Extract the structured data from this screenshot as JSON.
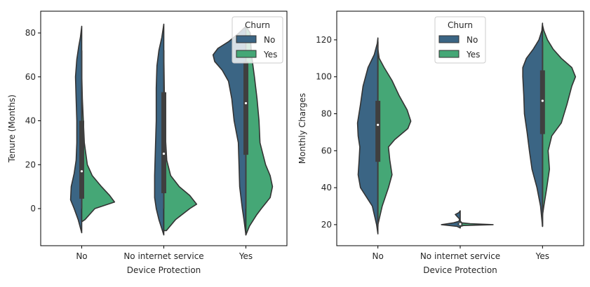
{
  "chart_data": [
    {
      "type": "violin",
      "split": true,
      "xlabel": "Device Protection",
      "ylabel": "Tenure (Months)",
      "categories": [
        "No",
        "No internet service",
        "Yes"
      ],
      "ylim": [
        -16.9,
        89.9
      ],
      "yticks": [
        0,
        20,
        40,
        60,
        80
      ],
      "grid": false,
      "legend": {
        "title": "Churn",
        "placement": "top-right",
        "entries": [
          "No",
          "Yes"
        ]
      },
      "series": [
        {
          "name": "No",
          "color": "#3b6584",
          "profiles": [
            [
              [
                -11,
                0
              ],
              [
                -5,
                0.11
              ],
              [
                0,
                0.23
              ],
              [
                4,
                0.34
              ],
              [
                10,
                0.32
              ],
              [
                16,
                0.23
              ],
              [
                22,
                0.17
              ],
              [
                30,
                0.15
              ],
              [
                40,
                0.15
              ],
              [
                50,
                0.17
              ],
              [
                60,
                0.19
              ],
              [
                68,
                0.15
              ],
              [
                74,
                0.09
              ],
              [
                78,
                0.04
              ],
              [
                83,
                0
              ]
            ],
            [
              [
                -12,
                0
              ],
              [
                -5,
                0.15
              ],
              [
                0,
                0.23
              ],
              [
                5,
                0.28
              ],
              [
                15,
                0.28
              ],
              [
                25,
                0.26
              ],
              [
                40,
                0.23
              ],
              [
                55,
                0.23
              ],
              [
                65,
                0.21
              ],
              [
                72,
                0.15
              ],
              [
                78,
                0.06
              ],
              [
                84,
                0
              ]
            ],
            [
              [
                -12,
                0
              ],
              [
                -5,
                0.06
              ],
              [
                0,
                0.11
              ],
              [
                10,
                0.19
              ],
              [
                20,
                0.21
              ],
              [
                30,
                0.23
              ],
              [
                40,
                0.36
              ],
              [
                50,
                0.43
              ],
              [
                58,
                0.53
              ],
              [
                63,
                0.72
              ],
              [
                67,
                0.95
              ],
              [
                70,
                1.0
              ],
              [
                73,
                0.85
              ],
              [
                76,
                0.53
              ],
              [
                80,
                0.21
              ],
              [
                83,
                0
              ]
            ]
          ]
        },
        {
          "name": "Yes",
          "color": "#45a776",
          "profiles": [
            [
              [
                -6,
                0
              ],
              [
                -5,
                0.1
              ],
              [
                0,
                0.4
              ],
              [
                3,
                1.0
              ],
              [
                6,
                0.85
              ],
              [
                10,
                0.6
              ],
              [
                15,
                0.32
              ],
              [
                20,
                0.17
              ],
              [
                30,
                0.08
              ],
              [
                40,
                0.05
              ],
              [
                50,
                0.02
              ],
              [
                62,
                0
              ]
            ],
            [
              [
                -10,
                0
              ],
              [
                -10,
                0.08
              ],
              [
                -5,
                0.36
              ],
              [
                0,
                0.79
              ],
              [
                2,
                1.0
              ],
              [
                6,
                0.79
              ],
              [
                10,
                0.47
              ],
              [
                15,
                0.21
              ],
              [
                22,
                0.09
              ],
              [
                35,
                0.04
              ],
              [
                50,
                0.02
              ],
              [
                72,
                0
              ]
            ],
            [
              [
                -12,
                0
              ],
              [
                -8,
                0.11
              ],
              [
                -3,
                0.32
              ],
              [
                0,
                0.47
              ],
              [
                5,
                0.74
              ],
              [
                10,
                0.81
              ],
              [
                15,
                0.74
              ],
              [
                20,
                0.6
              ],
              [
                30,
                0.43
              ],
              [
                40,
                0.4
              ],
              [
                50,
                0.34
              ],
              [
                60,
                0.26
              ],
              [
                70,
                0.17
              ],
              [
                80,
                0.13
              ],
              [
                83,
                0
              ]
            ]
          ]
        }
      ],
      "boxes": [
        {
          "q1": 4.5,
          "median": 17,
          "q3": 40,
          "whiskers": [
            0,
            72
          ]
        },
        {
          "q1": 7,
          "median": 25,
          "q3": 53,
          "whiskers": [
            0,
            72
          ]
        },
        {
          "q1": 24.5,
          "median": 48,
          "q3": 67,
          "whiskers": [
            0,
            72
          ]
        }
      ]
    },
    {
      "type": "violin",
      "split": true,
      "xlabel": "Device Protection",
      "ylabel": "Monthly Charges",
      "categories": [
        "No",
        "No internet service",
        "Yes"
      ],
      "ylim": [
        8.6,
        135.5
      ],
      "yticks": [
        20,
        40,
        60,
        80,
        100,
        120
      ],
      "grid": false,
      "legend": {
        "title": "Churn",
        "placement": "top-center",
        "entries": [
          "No",
          "Yes"
        ]
      },
      "series": [
        {
          "name": "No",
          "color": "#3b6584",
          "profiles": [
            [
              [
                15,
                0
              ],
              [
                20,
                0.04
              ],
              [
                30,
                0.17
              ],
              [
                40,
                0.53
              ],
              [
                47,
                0.6
              ],
              [
                55,
                0.57
              ],
              [
                62,
                0.55
              ],
              [
                68,
                0.6
              ],
              [
                75,
                0.62
              ],
              [
                85,
                0.53
              ],
              [
                95,
                0.45
              ],
              [
                105,
                0.3
              ],
              [
                112,
                0.11
              ],
              [
                118,
                0.02
              ],
              [
                121,
                0
              ]
            ],
            [
              [
                18.2,
                0
              ],
              [
                19,
                0.09
              ],
              [
                20,
                0.57
              ],
              [
                21,
                0.2
              ],
              [
                21.8,
                0.04
              ],
              [
                23,
                0.02
              ],
              [
                24.5,
                0.1
              ],
              [
                25.5,
                0.15
              ],
              [
                26.5,
                0.04
              ],
              [
                27.5,
                0
              ]
            ],
            [
              [
                19,
                0
              ],
              [
                30,
                0.06
              ],
              [
                40,
                0.17
              ],
              [
                50,
                0.32
              ],
              [
                60,
                0.4
              ],
              [
                70,
                0.47
              ],
              [
                80,
                0.55
              ],
              [
                90,
                0.57
              ],
              [
                100,
                0.6
              ],
              [
                105,
                0.6
              ],
              [
                110,
                0.49
              ],
              [
                115,
                0.28
              ],
              [
                120,
                0.11
              ],
              [
                125,
                0.02
              ],
              [
                129,
                0
              ]
            ]
          ]
        },
        {
          "name": "Yes",
          "color": "#45a776",
          "profiles": [
            [
              [
                20,
                0
              ],
              [
                30,
                0.13
              ],
              [
                40,
                0.32
              ],
              [
                47,
                0.43
              ],
              [
                55,
                0.36
              ],
              [
                62,
                0.32
              ],
              [
                66,
                0.51
              ],
              [
                72,
                0.91
              ],
              [
                76,
                1.0
              ],
              [
                82,
                0.89
              ],
              [
                90,
                0.64
              ],
              [
                98,
                0.43
              ],
              [
                105,
                0.19
              ],
              [
                110,
                0.04
              ],
              [
                115,
                0
              ]
            ],
            [
              [
                19,
                0
              ],
              [
                19.5,
                0.1
              ],
              [
                20,
                1.0
              ],
              [
                20.5,
                0.3
              ],
              [
                21,
                0.05
              ],
              [
                22,
                0
              ]
            ],
            [
              [
                25,
                0
              ],
              [
                30,
                0.04
              ],
              [
                40,
                0.13
              ],
              [
                50,
                0.21
              ],
              [
                60,
                0.17
              ],
              [
                68,
                0.28
              ],
              [
                75,
                0.57
              ],
              [
                85,
                0.74
              ],
              [
                95,
                0.89
              ],
              [
                100,
                1.0
              ],
              [
                105,
                0.89
              ],
              [
                110,
                0.57
              ],
              [
                115,
                0.32
              ],
              [
                120,
                0.15
              ],
              [
                125,
                0.04
              ],
              [
                128,
                0
              ]
            ]
          ]
        }
      ],
      "boxes": [
        {
          "q1": 54,
          "median": 74,
          "q3": 87,
          "whiskers": [
            19,
            119
          ]
        },
        {
          "q1": 19.7,
          "median": 20.3,
          "q3": 20.9,
          "whiskers": [
            18.3,
            22
          ]
        },
        {
          "q1": 69,
          "median": 87,
          "q3": 103.5,
          "whiskers": [
            19,
            119
          ]
        }
      ]
    }
  ]
}
